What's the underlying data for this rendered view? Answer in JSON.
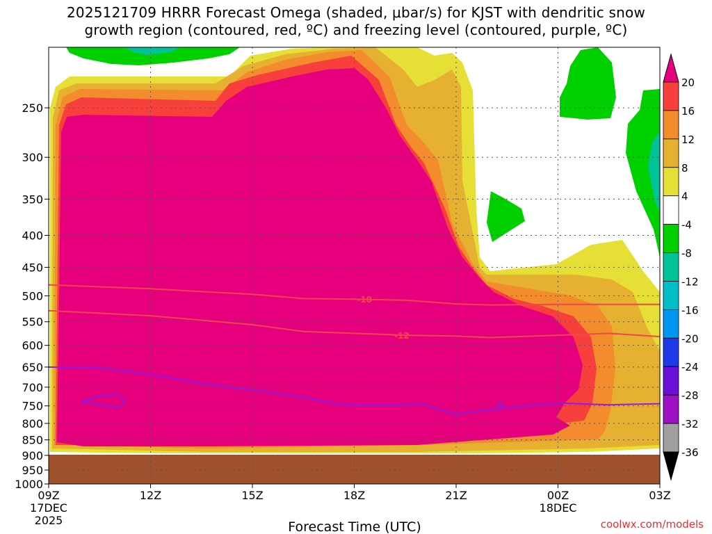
{
  "title": {
    "line1": "2025121709 HRRR Forecast Omega (shaded, μbar/s) for KJST with dendritic snow",
    "line2": "growth region (contoured, red, ºC) and freezing level (contoured, purple, ºC)"
  },
  "credit": "coolwx.com/models",
  "chart_data": {
    "type": "heatmap",
    "xlabel": "Forecast Time (UTC)",
    "ylabel": "",
    "x_ticks": [
      {
        "hour": 0,
        "label": "09Z",
        "sub1": "17DEC",
        "sub2": "2025"
      },
      {
        "hour": 3,
        "label": "12Z",
        "sub1": "",
        "sub2": ""
      },
      {
        "hour": 6,
        "label": "15Z",
        "sub1": "",
        "sub2": ""
      },
      {
        "hour": 9,
        "label": "18Z",
        "sub1": "",
        "sub2": ""
      },
      {
        "hour": 12,
        "label": "21Z",
        "sub1": "",
        "sub2": ""
      },
      {
        "hour": 15,
        "label": "00Z",
        "sub1": "18DEC",
        "sub2": ""
      },
      {
        "hour": 18,
        "label": "03Z",
        "sub1": "",
        "sub2": ""
      }
    ],
    "y_ticks": [
      "250",
      "300",
      "350",
      "400",
      "450",
      "500",
      "550",
      "600",
      "650",
      "700",
      "750",
      "800",
      "850",
      "900",
      "950",
      "1000"
    ],
    "xlim": [
      0,
      18
    ],
    "ylim": [
      1000,
      200
    ],
    "y_scale": "log",
    "grid": true,
    "colorbar": {
      "labels": [
        "20",
        "16",
        "12",
        "8",
        "4",
        "-4",
        "-8",
        "-12",
        "-16",
        "-20",
        "-24",
        "-28",
        "-32",
        "-36"
      ],
      "colors": [
        "#e6007e",
        "#f7403c",
        "#f28c2c",
        "#e6b030",
        "#e6df35",
        "#ffffff",
        "#00d000",
        "#00c39a",
        "#00bfc9",
        "#0096f0",
        "#1e3ae6",
        "#6a10d8",
        "#9e10c4",
        "#a0a0a0"
      ],
      "top_arrow_color": "#e6007e",
      "bottom_arrow_color": "#000000"
    },
    "ground_color": "#a0522d",
    "contours": [
      {
        "label": "-18",
        "color": "#f04848",
        "points": [
          [
            0,
            480
          ],
          [
            3,
            487
          ],
          [
            6,
            497
          ],
          [
            7.5,
            505
          ],
          [
            9,
            506
          ],
          [
            10.5,
            508
          ],
          [
            12,
            515
          ],
          [
            13,
            517
          ],
          [
            15,
            516
          ],
          [
            16.5,
            516
          ],
          [
            18,
            516
          ]
        ]
      },
      {
        "label": "-12",
        "color": "#f04848",
        "points": [
          [
            0,
            528
          ],
          [
            3,
            538
          ],
          [
            6,
            556
          ],
          [
            7.5,
            570
          ],
          [
            9,
            574
          ],
          [
            10.5,
            578
          ],
          [
            12,
            580
          ],
          [
            13,
            583
          ],
          [
            15,
            578
          ],
          [
            16.5,
            574
          ],
          [
            18,
            581
          ]
        ]
      },
      {
        "label": "0",
        "color": "#8c1ee6",
        "points": [
          [
            0,
            650
          ],
          [
            1.5,
            652
          ],
          [
            3,
            668
          ],
          [
            4.5,
            690
          ],
          [
            6,
            707
          ],
          [
            7.5,
            726
          ],
          [
            8.5,
            745
          ],
          [
            9,
            748
          ],
          [
            10,
            748
          ],
          [
            11,
            745
          ],
          [
            12,
            774
          ],
          [
            13,
            760
          ],
          [
            15,
            742
          ],
          [
            16.5,
            747
          ],
          [
            18,
            744
          ]
        ]
      }
    ]
  }
}
